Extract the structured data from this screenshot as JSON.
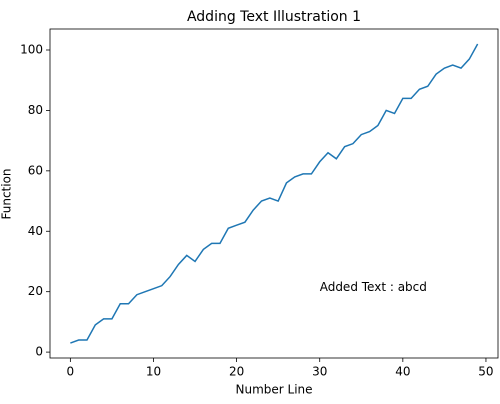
{
  "chart_data": {
    "type": "line",
    "title": "Adding Text Illustration 1",
    "x_label": "Number Line",
    "y_label": "Function",
    "x": [
      0,
      1,
      2,
      3,
      4,
      5,
      6,
      7,
      8,
      9,
      10,
      11,
      12,
      13,
      14,
      15,
      16,
      17,
      18,
      19,
      20,
      21,
      22,
      23,
      24,
      25,
      26,
      27,
      28,
      29,
      30,
      31,
      32,
      33,
      34,
      35,
      36,
      37,
      38,
      39,
      40,
      41,
      42,
      43,
      44,
      45,
      46,
      47,
      48,
      49
    ],
    "values": [
      3,
      4,
      4,
      9,
      11,
      11,
      16,
      16,
      19,
      20,
      21,
      22,
      25,
      29,
      32,
      30,
      34,
      36,
      36,
      41,
      42,
      43,
      47,
      50,
      51,
      50,
      56,
      58,
      59,
      59,
      63,
      66,
      64,
      68,
      69,
      72,
      73,
      75,
      80,
      79,
      84,
      84,
      87,
      88,
      92,
      94,
      95,
      94,
      97,
      102
    ],
    "color": "#1f77b4",
    "xlim": [
      -2.45,
      51.45
    ],
    "ylim": [
      -1.95,
      106.95
    ],
    "xticks": [
      0,
      10,
      20,
      30,
      40,
      50
    ],
    "yticks": [
      0,
      20,
      40,
      60,
      80,
      100
    ],
    "grid": false,
    "annotations": [
      {
        "text": "Added Text : abcd",
        "x": 30,
        "y": 20
      }
    ]
  }
}
